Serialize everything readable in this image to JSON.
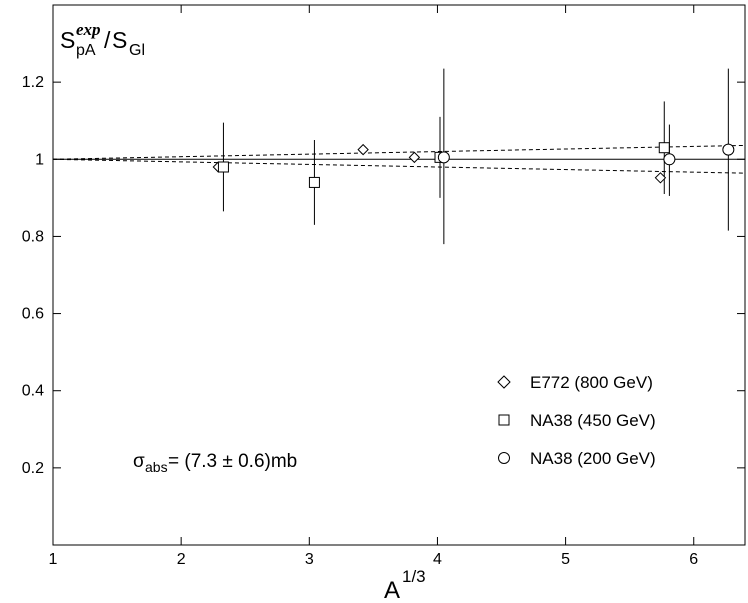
{
  "chart_data": {
    "type": "scatter",
    "title": "",
    "xlabel": {
      "base": "A",
      "sup": "1/3"
    },
    "ylabel": {
      "base1": "S",
      "sup1": "exp",
      "sub1": "pA",
      "slash": "/",
      "base2": "S",
      "sub2": "Gl"
    },
    "xlim": [
      1,
      6.4
    ],
    "ylim": [
      0,
      1.4
    ],
    "xticks": [
      "1",
      "2",
      "3",
      "4",
      "5",
      "6"
    ],
    "xtick_values": [
      1,
      2,
      3,
      4,
      5,
      6
    ],
    "yticks": [
      "0.2",
      "0.4",
      "0.6",
      "0.8",
      "1",
      "1.2"
    ],
    "ytick_values": [
      0.2,
      0.4,
      0.6,
      0.8,
      1.0,
      1.2
    ],
    "grid": false,
    "legend_position": "bottom-right",
    "series": [
      {
        "name": "E772 (800 GeV)",
        "marker": "diamond",
        "points": [
          {
            "x": 2.29,
            "y": 0.98
          },
          {
            "x": 3.42,
            "y": 1.025
          },
          {
            "x": 3.82,
            "y": 1.005
          },
          {
            "x": 5.74,
            "y": 0.952
          }
        ]
      },
      {
        "name": "NA38 (450 GeV)",
        "marker": "square",
        "points": [
          {
            "x": 2.33,
            "y": 0.98,
            "ylo": 0.865,
            "yhi": 1.095
          },
          {
            "x": 3.04,
            "y": 0.94,
            "ylo": 0.83,
            "yhi": 1.05
          },
          {
            "x": 4.02,
            "y": 1.005,
            "ylo": 0.9,
            "yhi": 1.11
          },
          {
            "x": 5.77,
            "y": 1.03,
            "ylo": 0.91,
            "yhi": 1.15
          }
        ]
      },
      {
        "name": "NA38 (200 GeV)",
        "marker": "circle",
        "points": [
          {
            "x": 4.05,
            "y": 1.005,
            "ylo": 0.78,
            "yhi": 1.235
          },
          {
            "x": 5.81,
            "y": 1.0,
            "ylo": 0.905,
            "yhi": 1.09
          },
          {
            "x": 6.27,
            "y": 1.025,
            "ylo": 0.815,
            "yhi": 1.235
          }
        ]
      }
    ],
    "reference_lines": [
      {
        "style": "solid",
        "from": [
          1,
          1.0
        ],
        "to": [
          6.4,
          1.0
        ]
      },
      {
        "style": "dashed",
        "from": [
          1,
          1.0
        ],
        "to": [
          6.4,
          1.036
        ]
      },
      {
        "style": "dashed",
        "from": [
          1,
          1.0
        ],
        "to": [
          6.4,
          0.964
        ]
      }
    ],
    "annotation": {
      "sym": "σ",
      "sub": "abs",
      "rest": " = (7.3 ± 0.6)mb"
    }
  }
}
